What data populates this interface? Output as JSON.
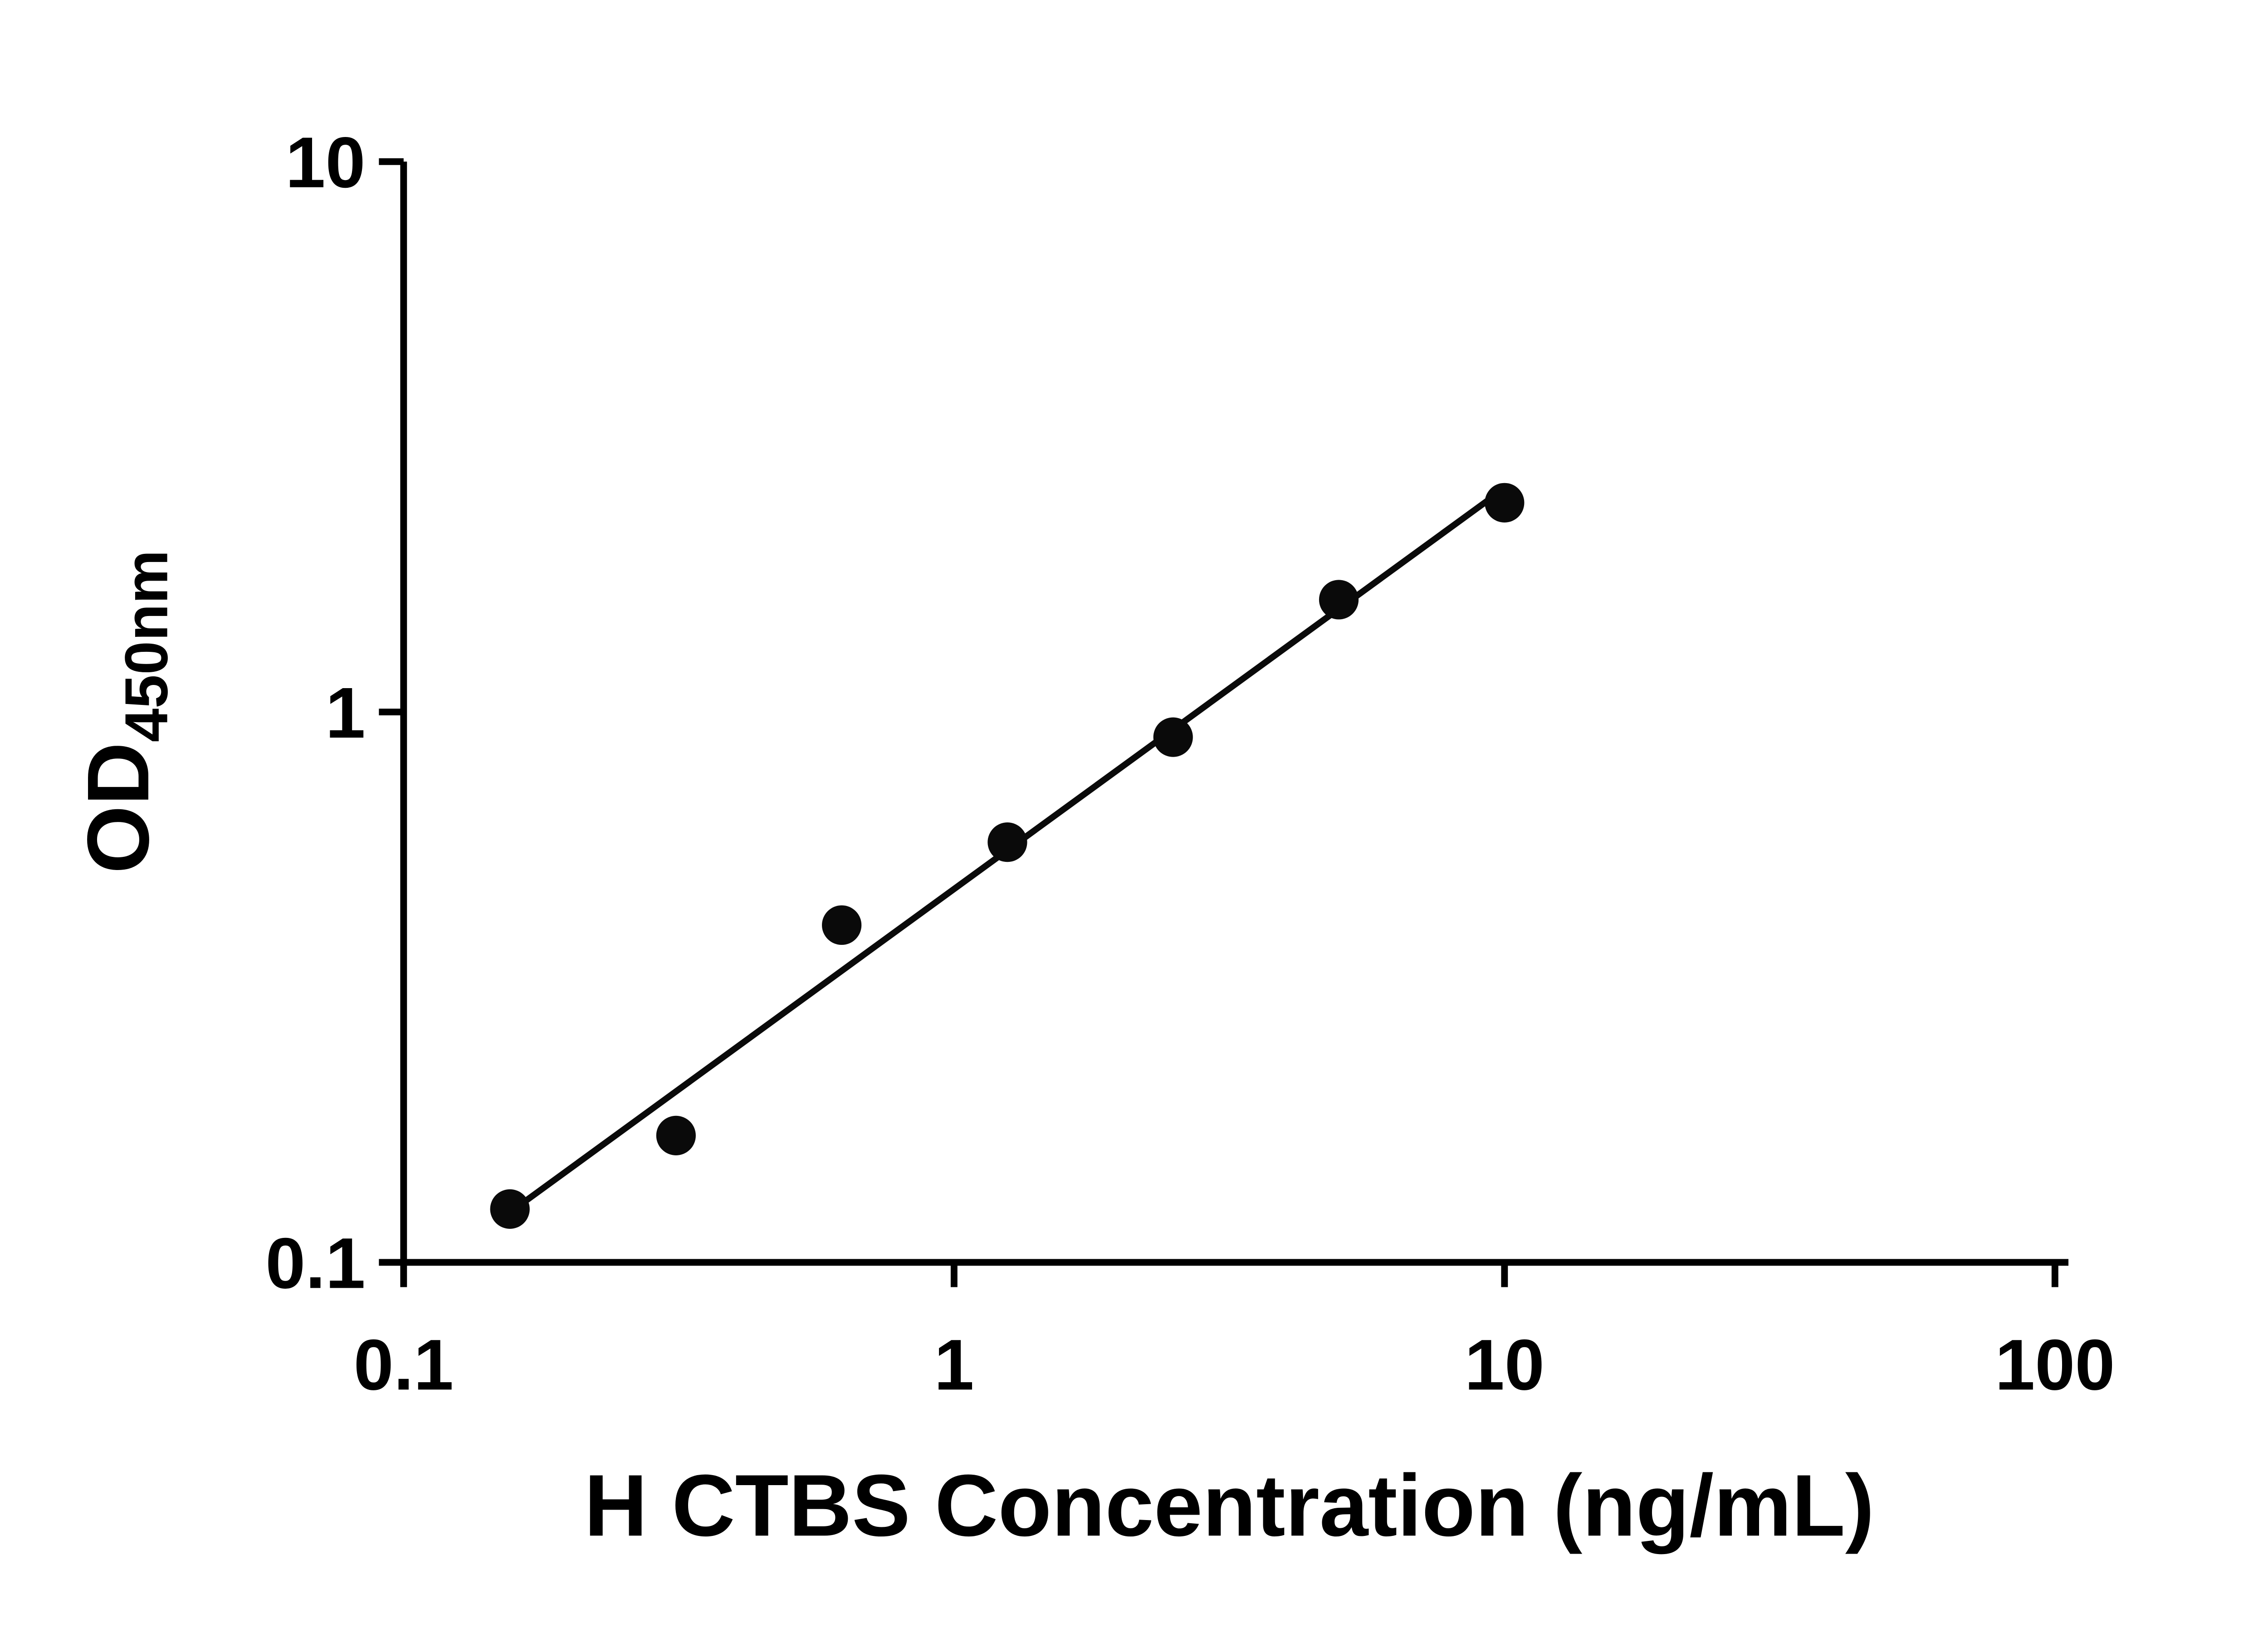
{
  "chart_data": {
    "type": "scatter",
    "title": "",
    "xlabel": "H CTBS Concentration (ng/mL)",
    "ylabel_main": "OD",
    "ylabel_sub": "450nm",
    "x_scale": "log",
    "y_scale": "log",
    "xlim": [
      0.1,
      100
    ],
    "ylim": [
      0.1,
      10
    ],
    "x_ticks": [
      {
        "value": 0.1,
        "label": "0.1"
      },
      {
        "value": 1,
        "label": "1"
      },
      {
        "value": 10,
        "label": "10"
      },
      {
        "value": 100,
        "label": "100"
      }
    ],
    "y_ticks": [
      {
        "value": 0.1,
        "label": "0.1"
      },
      {
        "value": 1,
        "label": "1"
      },
      {
        "value": 10,
        "label": "10"
      }
    ],
    "points": [
      {
        "x": 0.156,
        "y": 0.125
      },
      {
        "x": 0.3125,
        "y": 0.17
      },
      {
        "x": 0.625,
        "y": 0.41
      },
      {
        "x": 1.25,
        "y": 0.58
      },
      {
        "x": 2.5,
        "y": 0.9
      },
      {
        "x": 5,
        "y": 1.6
      },
      {
        "x": 10,
        "y": 2.4
      }
    ],
    "trend_line": {
      "show": true,
      "fit": "log-log-linear-regression"
    },
    "grid": "off",
    "legend": "none",
    "colors": {
      "background": "#ffffff",
      "axis": "#000000",
      "marker": "#0a0a0a",
      "line": "#0a0a0a",
      "text": "#000000"
    }
  }
}
